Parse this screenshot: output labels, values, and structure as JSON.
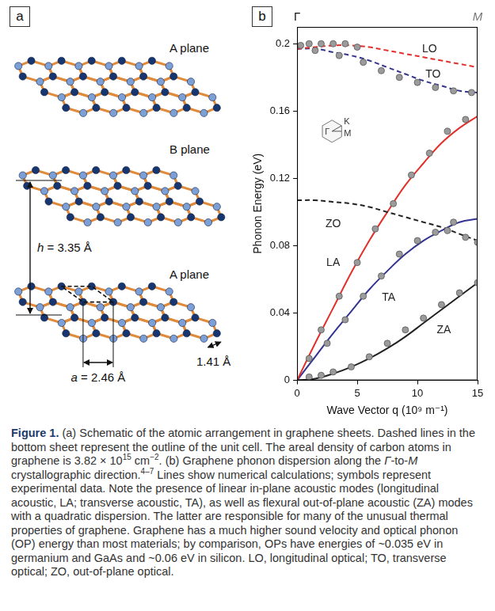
{
  "panel_a": {
    "letter": "a",
    "planes": [
      "A plane",
      "B plane",
      "A plane"
    ],
    "h_label": [
      {
        "t": "h",
        "style": "italic"
      },
      {
        "t": " = 3.35 Å"
      }
    ],
    "a_label": [
      {
        "t": "a",
        "style": "italic"
      },
      {
        "t": " = 2.46 Å"
      }
    ],
    "bond_label": "1.41 Å"
  },
  "panel_b": {
    "letter": "b"
  },
  "chart_data": {
    "type": "line",
    "x_label": "Wave Vector q (10⁹ m⁻¹)",
    "y_label": "Phonon Energy (eV)",
    "annotations": [
      "Γ",
      "M",
      "Γ",
      "K",
      "M"
    ],
    "xlim": [
      0,
      15
    ],
    "xticks": [
      0,
      5,
      10,
      15
    ],
    "ylim": [
      0,
      0.21
    ],
    "yticks": [
      0,
      0.04,
      0.08,
      0.12,
      0.16,
      0.2
    ],
    "grid": false,
    "series": [
      {
        "type": "scatter",
        "color": "#9b9b9b",
        "marker": "circle",
        "x": [
          0.3,
          1,
          2,
          3,
          4,
          5,
          1.5,
          3.5,
          5.5,
          7,
          8.5,
          10,
          11.5,
          13,
          14.5,
          12.5,
          14,
          15,
          1,
          2,
          3.5,
          5,
          6.5,
          8,
          9.5,
          11,
          12.5,
          14,
          2.5,
          4,
          5.5,
          7,
          8.5,
          10,
          11.5,
          13,
          1,
          2,
          3,
          4.5,
          6,
          7.5,
          9,
          10.5,
          12,
          13.5,
          15
        ],
        "values": [
          0.199,
          0.2,
          0.2,
          0.2,
          0.2,
          0.198,
          0.196,
          0.193,
          0.189,
          0.184,
          0.18,
          0.177,
          0.174,
          0.172,
          0.171,
          0.089,
          0.085,
          0.082,
          0.013,
          0.03,
          0.05,
          0.07,
          0.09,
          0.105,
          0.122,
          0.135,
          0.148,
          0.155,
          0.022,
          0.036,
          0.05,
          0.062,
          0.075,
          0.083,
          0.088,
          0.094,
          0.002,
          0.003,
          0.005,
          0.008,
          0.014,
          0.022,
          0.03,
          0.037,
          0.045,
          0.052,
          0.058
        ]
      },
      {
        "name": "LO",
        "type": "line",
        "color": "#e2302b",
        "line_style": "dashed",
        "x": [
          0,
          1.5,
          3,
          4.5,
          6,
          7.5,
          9,
          10.5,
          12,
          13.5,
          15
        ],
        "values": [
          0.197,
          0.198,
          0.199,
          0.199,
          0.198,
          0.196,
          0.194,
          0.192,
          0.19,
          0.188,
          0.186
        ]
      },
      {
        "name": "TO",
        "type": "line",
        "color": "#34348f",
        "line_style": "dashed",
        "x": [
          0,
          1.5,
          3,
          4.5,
          6,
          7.5,
          9,
          10.5,
          12,
          13.5,
          15
        ],
        "values": [
          0.197,
          0.197,
          0.195,
          0.193,
          0.19,
          0.186,
          0.182,
          0.178,
          0.175,
          0.172,
          0.171
        ]
      },
      {
        "name": "ZO",
        "type": "line",
        "color": "#222222",
        "line_style": "dashed",
        "x": [
          0,
          1.5,
          3,
          4.5,
          6,
          7.5,
          9,
          10.5,
          12,
          13.5,
          15
        ],
        "values": [
          0.107,
          0.107,
          0.106,
          0.105,
          0.103,
          0.1,
          0.097,
          0.094,
          0.091,
          0.087,
          0.083
        ]
      },
      {
        "name": "LA",
        "type": "line",
        "color": "#e2302b",
        "line_style": "solid",
        "x": [
          0,
          1.5,
          3,
          4.5,
          6,
          7.5,
          9,
          10.5,
          12,
          13.5,
          15
        ],
        "values": [
          0,
          0.022,
          0.043,
          0.064,
          0.083,
          0.1,
          0.116,
          0.129,
          0.141,
          0.15,
          0.157
        ]
      },
      {
        "name": "TA",
        "type": "line",
        "color": "#34348f",
        "line_style": "solid",
        "x": [
          0,
          1.5,
          3,
          4.5,
          6,
          7.5,
          9,
          10.5,
          12,
          13.5,
          15
        ],
        "values": [
          0,
          0.014,
          0.028,
          0.041,
          0.054,
          0.065,
          0.075,
          0.083,
          0.089,
          0.094,
          0.096
        ]
      },
      {
        "name": "ZA",
        "type": "line",
        "color": "#222222",
        "line_style": "solid",
        "x": [
          0,
          1.5,
          3,
          4.5,
          6,
          7.5,
          9,
          10.5,
          12,
          13.5,
          15
        ],
        "values": [
          0,
          0.001,
          0.004,
          0.008,
          0.013,
          0.019,
          0.026,
          0.034,
          0.042,
          0.05,
          0.058
        ]
      }
    ]
  },
  "caption": [
    {
      "t": "Figure 1.",
      "style": "bold"
    },
    {
      "t": " (a) Schematic of the atomic arrangement in graphene sheets. Dashed lines in the bottom sheet represent the outline of the unit cell. The areal density of carbon atoms in graphene is 3.82 × 10"
    },
    {
      "t": "15",
      "style": "sup"
    },
    {
      "t": " cm"
    },
    {
      "t": "−2",
      "style": "sup"
    },
    {
      "t": ". (b) Graphene phonon dispersion along the "
    },
    {
      "t": "Γ",
      "style": "italic"
    },
    {
      "t": "-to-"
    },
    {
      "t": "M",
      "style": "italic"
    },
    {
      "t": " crystallographic direction."
    },
    {
      "t": "4–7",
      "style": "sup"
    },
    {
      "t": " Lines show numerical calculations; symbols represent experimental data. Note the presence of linear in-plane acoustic modes (longitudinal acoustic, LA; transverse acoustic, TA), as well as flexural out-of-plane acoustic (ZA) modes with a quadratic dispersion. The latter are responsible for many of the unusual thermal properties of graphene. Graphene has a much higher sound velocity and optical phonon (OP) energy than most materials; by comparison, OPs have energies of ~0.035 eV in germanium and GaAs and ~0.06 eV in silicon. LO, longitudinal optical; TO, transverse optical; ZO, out-of-plane optical."
    }
  ]
}
